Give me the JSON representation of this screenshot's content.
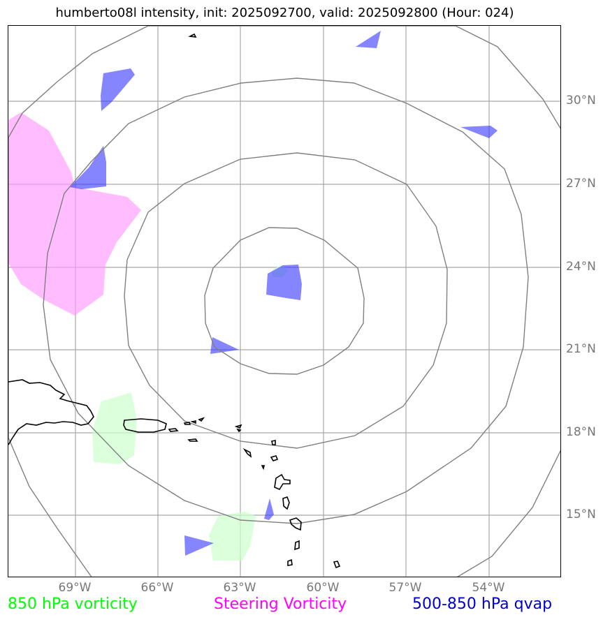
{
  "title": "humberto08l intensity, init: 2025092700, valid: 2025092800 (Hour: 024)",
  "map": {
    "lat_labels": [
      "30°N",
      "27°N",
      "24°N",
      "21°N",
      "18°N",
      "15°N"
    ],
    "lon_labels": [
      "69°W",
      "66°W",
      "63°W",
      "60°W",
      "57°W",
      "54°W"
    ],
    "extent": {
      "lon": [
        -71.4,
        -51.3
      ],
      "lat": [
        12.8,
        32.8
      ]
    },
    "range_rings_center": {
      "lon": -62.0,
      "lat": 22.5
    },
    "grid": true,
    "colors": {
      "vorticity_850": "#ccffcc",
      "steering_vorticity": "#ff99ff",
      "qvap": "#4d4dff"
    }
  },
  "legend": {
    "vorticity_850": {
      "label": "850 hPa vorticity",
      "color": "#00ff00"
    },
    "steering_vorticity": {
      "label": "Steering Vorticity",
      "color": "#ff00ff"
    },
    "qvap": {
      "label": "500-850 hPa qvap",
      "color": "#0000cc"
    }
  }
}
